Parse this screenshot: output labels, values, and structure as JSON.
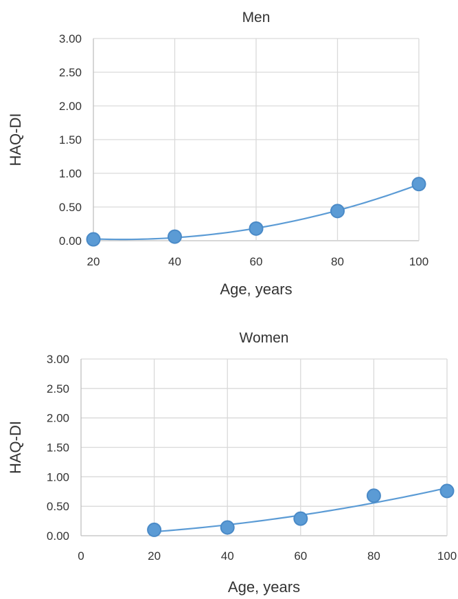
{
  "chart_data": [
    {
      "type": "scatter",
      "title": "Men",
      "xlabel": "Age, years",
      "ylabel": "HAQ-DI",
      "xlim": [
        20,
        100
      ],
      "ylim": [
        0,
        3
      ],
      "x_ticks": [
        "20",
        "40",
        "60",
        "80",
        "100"
      ],
      "y_ticks": [
        "0.00",
        "0.50",
        "1.00",
        "1.50",
        "2.00",
        "2.50",
        "3.00"
      ],
      "grid": true,
      "trendline": "polynomial",
      "color": "#5b9bd5",
      "series": [
        {
          "x": [
            20,
            40,
            60,
            80,
            100
          ],
          "y": [
            0.02,
            0.06,
            0.18,
            0.44,
            0.84
          ]
        }
      ]
    },
    {
      "type": "scatter",
      "title": "Women",
      "xlabel": "Age, years",
      "ylabel": "HAQ-DI",
      "xlim": [
        0,
        100
      ],
      "ylim": [
        0,
        3
      ],
      "x_ticks": [
        "0",
        "20",
        "40",
        "60",
        "80",
        "100"
      ],
      "y_ticks": [
        "0.00",
        "0.50",
        "1.00",
        "1.50",
        "2.00",
        "2.50",
        "3.00"
      ],
      "grid": true,
      "trendline": "polynomial",
      "color": "#5b9bd5",
      "series": [
        {
          "x": [
            20,
            40,
            60,
            80,
            100
          ],
          "y": [
            0.1,
            0.14,
            0.29,
            0.68,
            0.76
          ]
        }
      ]
    }
  ]
}
